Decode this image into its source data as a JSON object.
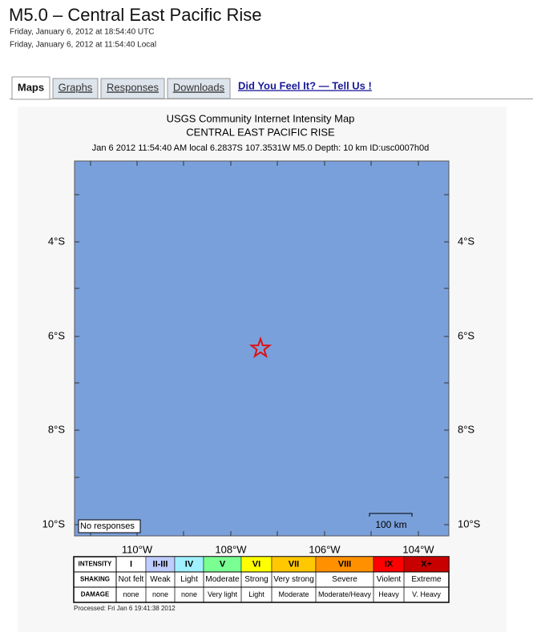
{
  "header": {
    "title": "M5.0 – Central East Pacific Rise",
    "utc_time": "Friday, January 6, 2012 at 18:54:40 UTC",
    "local_time": "Friday, January 6, 2012 at 11:54:40 Local"
  },
  "tabs": [
    "Maps",
    "Graphs",
    "Responses",
    "Downloads"
  ],
  "link": "Did You Feel It? — Tell Us !",
  "map": {
    "title": "USGS Community Internet Intensity Map",
    "region": "CENTRAL EAST PACIFIC RISE",
    "event_info": "Jan 6 2012 11:54:40 AM local 6.2837S 107.3531W M5.0 Depth: 10 km ID:usc0007h0d",
    "lat_labels": [
      "4°S",
      "6°S",
      "8°S",
      "10°S"
    ],
    "lon_labels": [
      "110°W",
      "108°W",
      "106°W",
      "104°W"
    ],
    "no_responses": "No responses",
    "scale_label": "100 km",
    "processed": "Processed: Fri Jan  6 19:41:38 2012"
  },
  "legend": {
    "row_labels": [
      "INTENSITY",
      "SHAKING",
      "DAMAGE"
    ],
    "columns": [
      {
        "intensity": "I",
        "shaking": "Not felt",
        "damage": "none",
        "color": "#ffffff"
      },
      {
        "intensity": "II-III",
        "shaking": "Weak",
        "damage": "none",
        "color": "#bfccff"
      },
      {
        "intensity": "IV",
        "shaking": "Light",
        "damage": "none",
        "color": "#a0f0ff"
      },
      {
        "intensity": "V",
        "shaking": "Moderate",
        "damage": "Very light",
        "color": "#7aff93"
      },
      {
        "intensity": "VI",
        "shaking": "Strong",
        "damage": "Light",
        "color": "#ffff00"
      },
      {
        "intensity": "VII",
        "shaking": "Very strong",
        "damage": "Moderate",
        "color": "#ffc800"
      },
      {
        "intensity": "VIII",
        "shaking": "Severe",
        "damage": "Moderate/Heavy",
        "color": "#ff9100"
      },
      {
        "intensity": "IX",
        "shaking": "Violent",
        "damage": "Heavy",
        "color": "#ff0000"
      },
      {
        "intensity": "X+",
        "shaking": "Extreme",
        "damage": "V. Heavy",
        "color": "#c80000"
      }
    ]
  }
}
